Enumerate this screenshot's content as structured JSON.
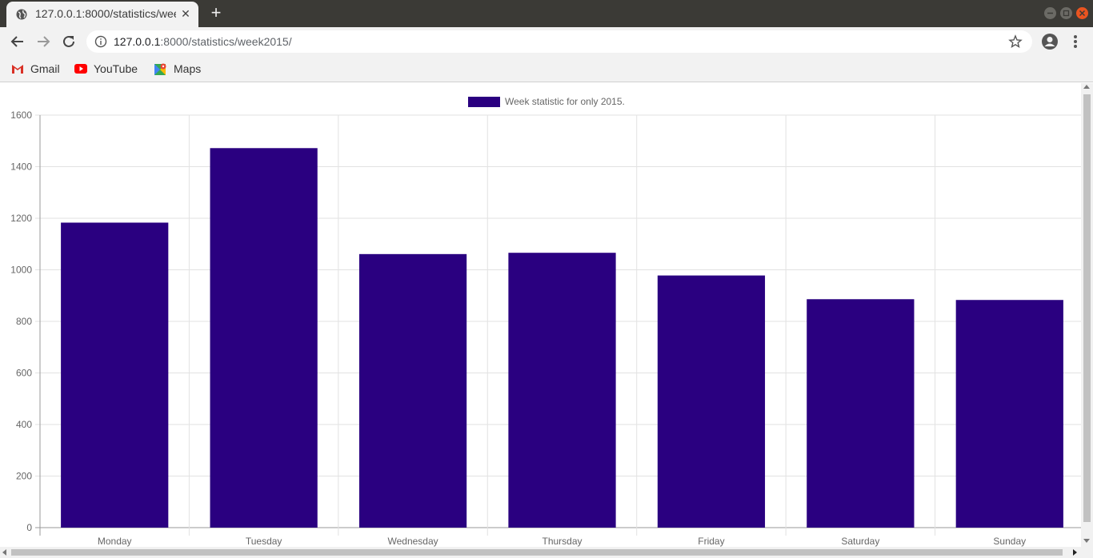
{
  "browser": {
    "tab_title": "127.0.0.1:8000/statistics/week2015/",
    "tab_close": "✕",
    "new_tab": "+",
    "url_host": "127.0.0.1",
    "url_rest": ":8000/statistics/week2015/",
    "bookmarks": [
      {
        "label": "Gmail",
        "icon": "gmail-icon"
      },
      {
        "label": "YouTube",
        "icon": "youtube-icon"
      },
      {
        "label": "Maps",
        "icon": "maps-icon"
      }
    ],
    "accent_close": "#e95420"
  },
  "chart_data": {
    "type": "bar",
    "categories": [
      "Monday",
      "Tuesday",
      "Wednesday",
      "Thursday",
      "Friday",
      "Saturday",
      "Sunday"
    ],
    "series": [
      {
        "name": "Week statistic for only 2015.",
        "values": [
          1183,
          1472,
          1061,
          1066,
          978,
          886,
          883
        ],
        "color": "#2a0080"
      }
    ],
    "ylim": [
      0,
      1600
    ],
    "yticks": [
      0,
      200,
      400,
      600,
      800,
      1000,
      1200,
      1400,
      1600
    ],
    "grid": true,
    "legend": "top-center",
    "title": "",
    "xlabel": "",
    "ylabel": ""
  }
}
